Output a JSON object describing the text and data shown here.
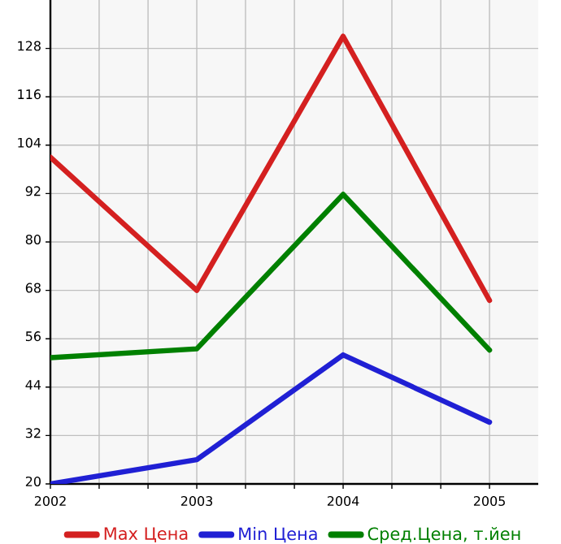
{
  "chart_data": {
    "type": "line",
    "x": [
      2002,
      2003,
      2004,
      2005
    ],
    "series": [
      {
        "name": "Max Цена",
        "color": "#d42020",
        "values": [
          101,
          68,
          131,
          65.5
        ]
      },
      {
        "name": "Min Цена",
        "color": "#2020d4",
        "values": [
          20,
          26,
          52,
          35.3
        ]
      },
      {
        "name": "Сред.Цена, т.йен",
        "color": "#008000",
        "values": [
          51.3,
          53.5,
          91.8,
          53.2
        ]
      }
    ],
    "xlim": [
      2002,
      2005.333
    ],
    "xticks": [
      2002,
      {
        "value": 2002.333,
        "label": null
      },
      {
        "value": 2002.667,
        "label": null
      },
      2003,
      {
        "value": 2003.333,
        "label": null
      },
      {
        "value": 2003.667,
        "label": null
      },
      2004,
      {
        "value": 2004.333,
        "label": null
      },
      {
        "value": 2004.667,
        "label": null
      },
      2005
    ],
    "ylim": [
      20,
      140
    ],
    "yticks": [
      20,
      32,
      44,
      56,
      68,
      80,
      92,
      104,
      116,
      128
    ],
    "grid": true,
    "legend": "bottom",
    "marker": "none",
    "line_style": "solid"
  }
}
